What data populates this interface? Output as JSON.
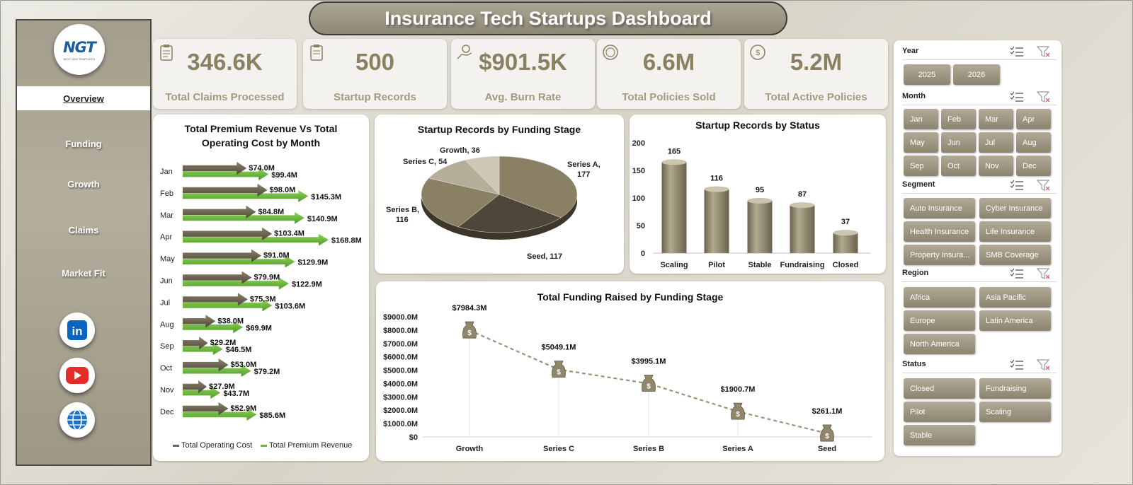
{
  "title": "Insurance Tech Startups Dashboard",
  "logo": {
    "text": "NGT",
    "sub": "NEXT GEN TEMPLATES"
  },
  "nav": [
    {
      "label": "Overview",
      "active": true
    },
    {
      "label": "Funding"
    },
    {
      "label": "Growth"
    },
    {
      "label": "Claims"
    },
    {
      "label": "Market Fit"
    }
  ],
  "social": [
    {
      "icon": "linkedin-icon",
      "color": "#0a66c2",
      "label": "in"
    },
    {
      "icon": "youtube-icon",
      "color": "#e52d27"
    },
    {
      "icon": "globe-icon",
      "color": "#1a73c8"
    }
  ],
  "kpis": [
    {
      "value": "346.6K",
      "label": "Total Claims Processed",
      "icon": "claims-clipboard-icon"
    },
    {
      "value": "500",
      "label": "Startup Records",
      "icon": "records-clipboard-icon"
    },
    {
      "value": "$901.5K",
      "label": "Avg. Burn Rate",
      "icon": "money-hand-icon"
    },
    {
      "value": "6.6M",
      "label": "Total Policies Sold",
      "icon": "policy-coin-icon"
    },
    {
      "value": "5.2M",
      "label": "Total Active Policies",
      "icon": "active-policy-icon"
    }
  ],
  "colors": {
    "accent": "#8a8163",
    "cost": "#6e6654",
    "revenue": "#6cb33f",
    "pie_dark": "#4d4639",
    "pie_mid": "#8a8064",
    "pie_light": "#b4ad98"
  },
  "slicers": {
    "year": {
      "title": "Year",
      "items": [
        "2025",
        "2026"
      ]
    },
    "month": {
      "title": "Month",
      "items": [
        "Jan",
        "Feb",
        "Mar",
        "Apr",
        "May",
        "Jun",
        "Jul",
        "Aug",
        "Sep",
        "Oct",
        "Nov",
        "Dec"
      ]
    },
    "segment": {
      "title": "Segment",
      "items": [
        "Auto Insurance",
        "Cyber Insurance",
        "Health Insurance",
        "Life Insurance",
        "Property Insura...",
        "SMB Coverage"
      ]
    },
    "region": {
      "title": "Region",
      "items": [
        "Africa",
        "Asia Pacific",
        "Europe",
        "Latin America",
        "North America"
      ]
    },
    "status": {
      "title": "Status",
      "items": [
        "Closed",
        "Fundraising",
        "Pilot",
        "Scaling",
        "Stable"
      ]
    }
  },
  "chart_data": [
    {
      "type": "bar",
      "title": "Total Premium Revenue Vs Total Operating Cost by Month",
      "categories": [
        "Jan",
        "Feb",
        "Mar",
        "Apr",
        "May",
        "Jun",
        "Jul",
        "Aug",
        "Sep",
        "Oct",
        "Nov",
        "Dec"
      ],
      "series": [
        {
          "name": "Total Operating Cost",
          "values": [
            74.0,
            98.0,
            84.8,
            103.4,
            91.0,
            79.9,
            75.3,
            38.0,
            29.2,
            53.0,
            27.9,
            52.9
          ],
          "labels": [
            "$74.0M",
            "$98.0M",
            "$84.8M",
            "$103.4M",
            "$91.0M",
            "$79.9M",
            "$75.3M",
            "$38.0M",
            "$29.2M",
            "$53.0M",
            "$27.9M",
            "$52.9M"
          ]
        },
        {
          "name": "Total Premium Revenue",
          "values": [
            99.4,
            145.3,
            140.9,
            168.8,
            129.9,
            122.9,
            103.6,
            69.9,
            46.5,
            79.2,
            43.7,
            85.6
          ],
          "labels": [
            "$99.4M",
            "$145.3M",
            "$140.9M",
            "$168.8M",
            "$129.9M",
            "$122.9M",
            "$103.6M",
            "$69.9M",
            "$46.5M",
            "$79.2M",
            "$43.7M",
            "$85.6M"
          ]
        }
      ],
      "legend": "bottom"
    },
    {
      "type": "pie",
      "title": "Startup Records by Funding Stage",
      "slices": [
        {
          "name": "Series A",
          "value": 177
        },
        {
          "name": "Seed",
          "value": 117
        },
        {
          "name": "Series B",
          "value": 116
        },
        {
          "name": "Series C",
          "value": 54
        },
        {
          "name": "Growth",
          "value": 36
        }
      ],
      "slice_labels": [
        "Series A, 177",
        "Seed, 117",
        "Series B, 116",
        "Series C, 54",
        "Growth, 36"
      ]
    },
    {
      "type": "bar",
      "title": "Startup Records by Status",
      "categories": [
        "Scaling",
        "Pilot",
        "Stable",
        "Fundraising",
        "Closed"
      ],
      "values": [
        165,
        116,
        95,
        87,
        37
      ],
      "ylim": [
        0,
        200
      ],
      "yticks": [
        "0",
        "50",
        "100",
        "150",
        "200"
      ]
    },
    {
      "type": "line",
      "title": "Total Funding Raised by Funding Stage",
      "categories": [
        "Growth",
        "Series C",
        "Series B",
        "Series A",
        "Seed"
      ],
      "values": [
        7984.3,
        5049.1,
        3995.1,
        1900.7,
        261.1
      ],
      "labels": [
        "$7984.3M",
        "$5049.1M",
        "$3995.1M",
        "$1900.7M",
        "$261.1M"
      ],
      "ylim": [
        0,
        9000
      ],
      "yticks": [
        "$0",
        "$1000.0M",
        "$2000.0M",
        "$3000.0M",
        "$4000.0M",
        "$5000.0M",
        "$6000.0M",
        "$7000.0M",
        "$8000.0M",
        "$9000.0M"
      ],
      "marker": "money-bag-icon"
    }
  ]
}
